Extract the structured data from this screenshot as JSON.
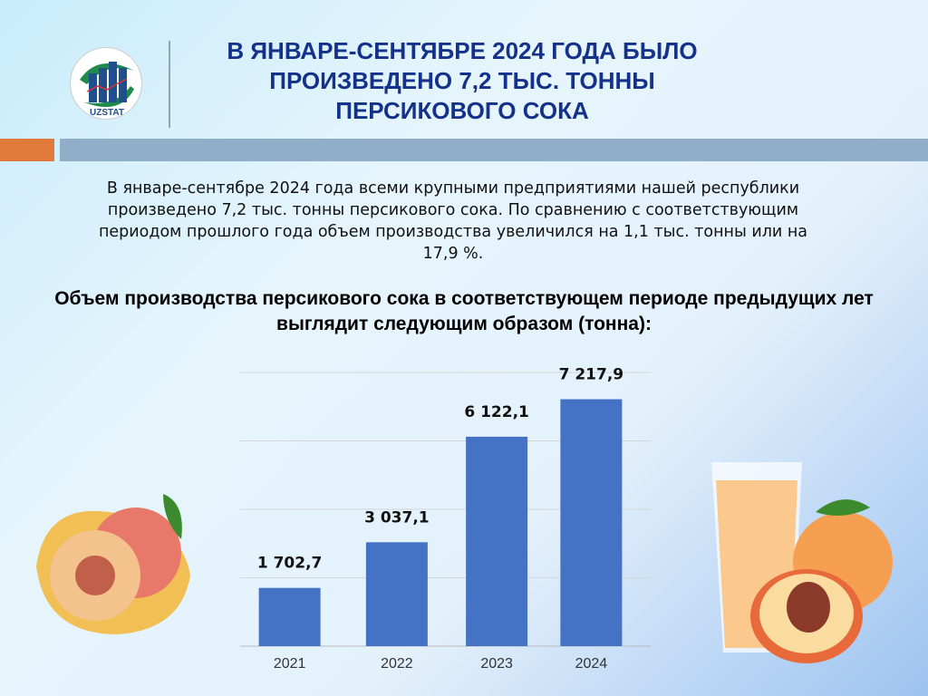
{
  "header": {
    "title_lines": [
      "В ЯНВАРЕ-СЕНТЯБРЕ 2024 ГОДА БЫЛО",
      "ПРОИЗВЕДЕНО 7,2 ТЫС. ТОННЫ",
      "ПЕРСИКОВОГО СОКА"
    ],
    "logo_text": "UZSTAT"
  },
  "paragraph": "В январе-сентябре 2024 года всеми крупными предприятиями нашей республики произведено 7,2 тыс. тонны персикового сока.  По сравнению с соответствующим периодом прошлого года объем производства увеличился на 1,1 тыс. тонны или на 17,9 %.",
  "subtitle": "Объем производства персикового сока в соответствующем периоде предыдущих лет выглядит следующим образом (тонна):",
  "colors": {
    "title": "#14328c",
    "bar": "#4472c4",
    "accent_orange": "#e07a3c"
  },
  "chart_data": {
    "type": "bar",
    "categories": [
      "2021",
      "2022",
      "2023",
      "2024"
    ],
    "values": [
      1702.7,
      3037.1,
      6122.1,
      7217.9
    ],
    "data_labels": [
      "1 702,7",
      "3 037,1",
      "6 122,1",
      "7 217,9"
    ],
    "ylim": [
      0,
      8000
    ],
    "grid": true,
    "gridline_step": 2000,
    "y_tick_labels_shown": false
  }
}
